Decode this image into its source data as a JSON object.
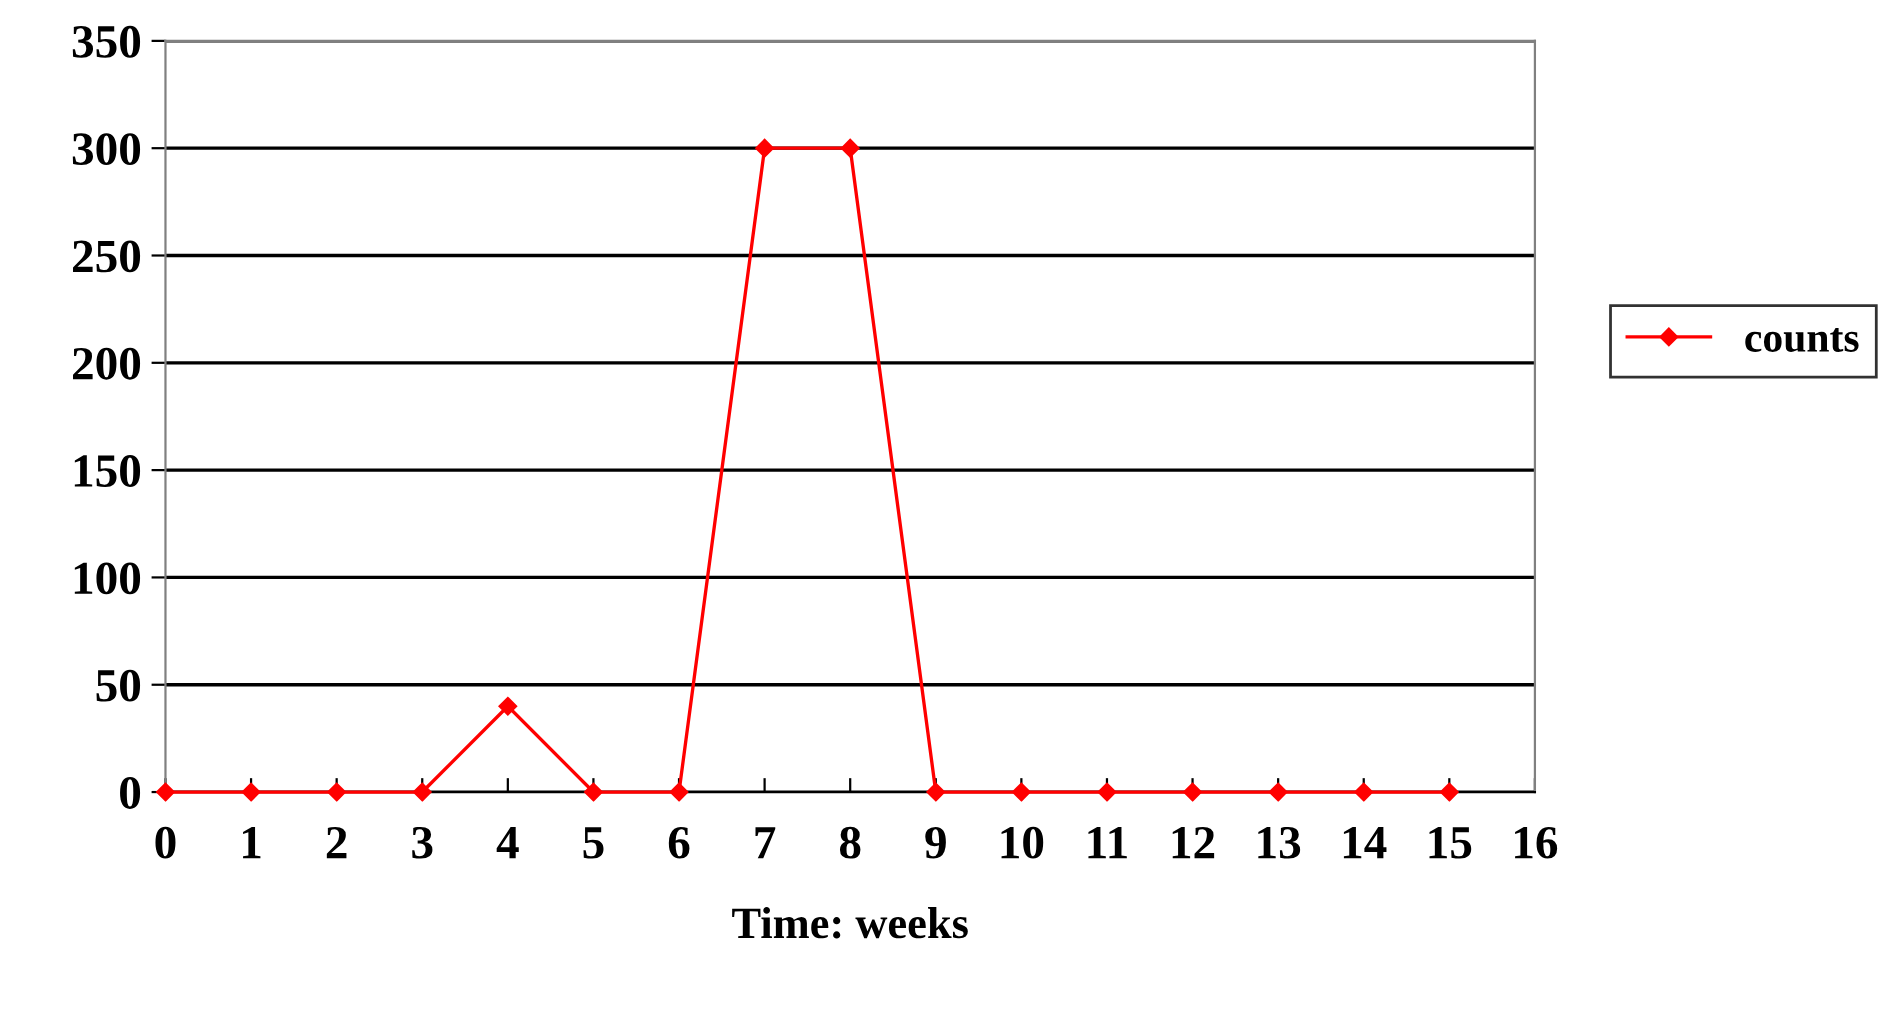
{
  "chart_data": {
    "type": "line",
    "xlabel": "Time: weeks",
    "x": [
      0,
      1,
      2,
      3,
      4,
      5,
      6,
      7,
      8,
      9,
      10,
      11,
      12,
      13,
      14,
      15
    ],
    "series": [
      {
        "name": "counts",
        "color": "#ff0000",
        "values": [
          0,
          0,
          0,
          0,
          40,
          0,
          0,
          300,
          300,
          0,
          0,
          0,
          0,
          0,
          0,
          0
        ]
      }
    ],
    "xlim": [
      0,
      16
    ],
    "xticks": [
      0,
      1,
      2,
      3,
      4,
      5,
      6,
      7,
      8,
      9,
      10,
      11,
      12,
      13,
      14,
      15,
      16
    ],
    "ylim": [
      0,
      350
    ],
    "yticks": [
      0,
      50,
      100,
      150,
      200,
      250,
      300,
      350
    ],
    "grid": "y",
    "legend": "right",
    "marker": "diamond",
    "line_style": "solid"
  }
}
